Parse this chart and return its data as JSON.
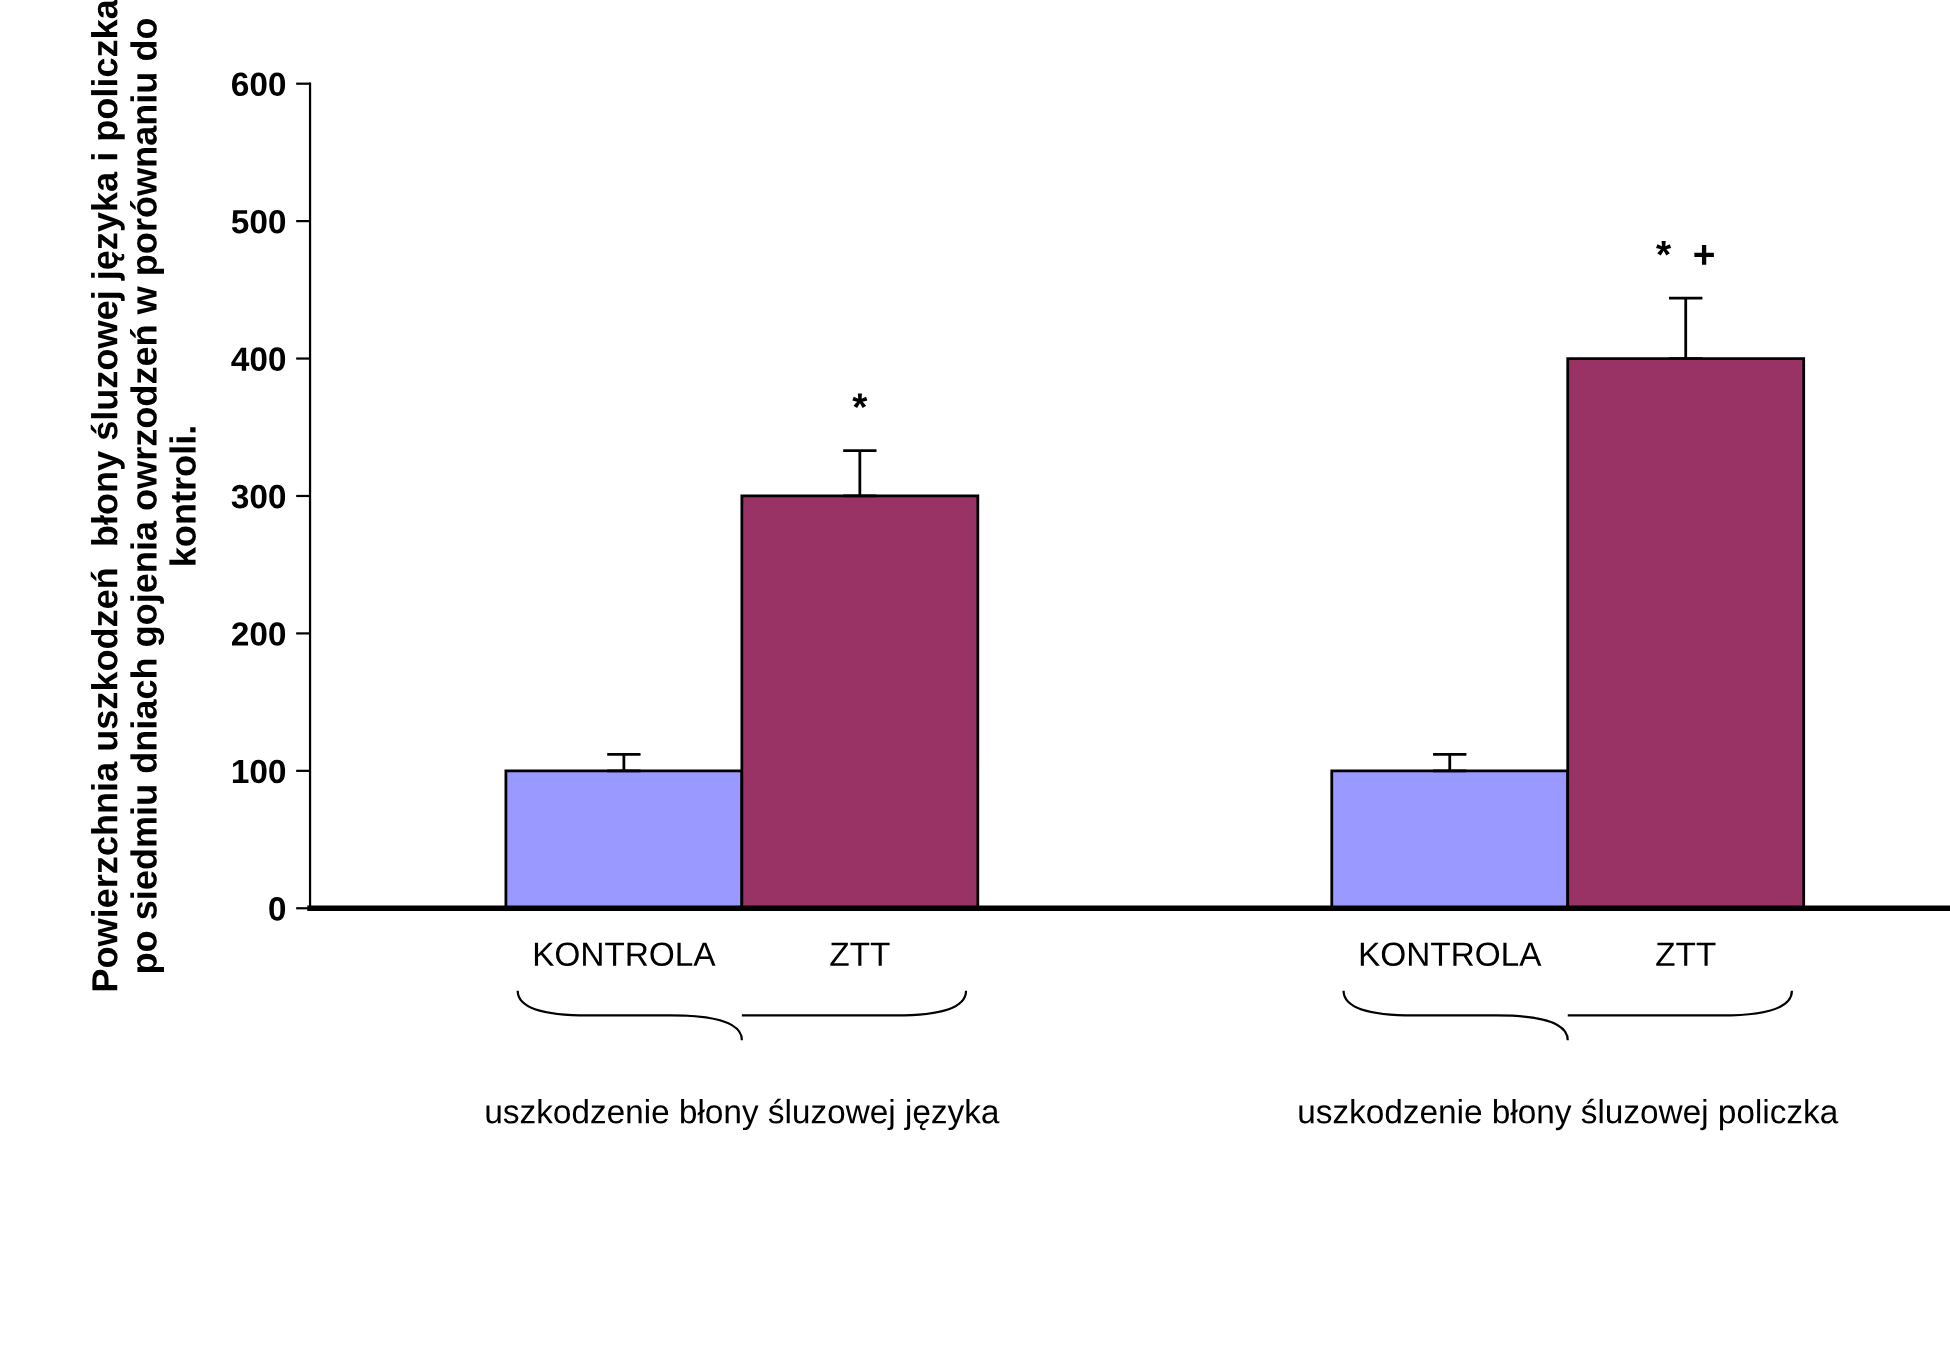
{
  "chart_data": {
    "type": "bar",
    "ylabel": "Powierzchnia uszkodzeń  błony śluzowej języka i policzka\npo siedmiu dniach gojenia owrzodzeń w porównaniu do\nkontroli.",
    "categories": [
      "KONTROLA",
      "ZTT",
      "KONTROLA",
      "ZTT"
    ],
    "values": [
      100,
      300,
      100,
      400
    ],
    "colors": [
      "#9999ff",
      "#993366",
      "#9999ff",
      "#993366"
    ],
    "errors": [
      [
        100,
        112
      ],
      [
        300,
        333
      ],
      [
        100,
        112
      ],
      [
        400,
        444
      ]
    ],
    "value_labels": [
      null,
      "*",
      null,
      "*  +"
    ],
    "ylim": [
      0,
      600
    ],
    "yticks": [
      0,
      100,
      200,
      300,
      400,
      500,
      600
    ],
    "grid": false,
    "legend": false,
    "annotations": [
      "uszkodzenie błony śluzowej języka",
      "uszkodzenie błony śluzowej policzka"
    ]
  }
}
